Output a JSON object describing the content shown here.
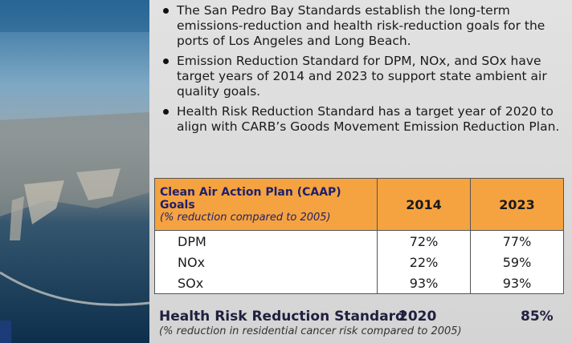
{
  "bullets": [
    "The San Pedro Bay Standards establish the long-term emissions-reduction and health risk-reduction goals for the ports of Los Angeles and Long Beach.",
    "Emission Reduction Standard for DPM, NOx, and SOx have target years of 2014 and 2023 to support state ambient air quality goals.",
    "Health Risk Reduction Standard has a target year of 2020 to align with CARB’s Goods Movement Emission Reduction Plan."
  ],
  "table": {
    "header": {
      "title": "Clean Air Action Plan (CAAP) Goals",
      "subtitle": "(% reduction compared to 2005)",
      "years": [
        "2014",
        "2023"
      ]
    },
    "rows": [
      [
        "DPM",
        "72%",
        "77%"
      ],
      [
        "NOx",
        "22%",
        "59%"
      ],
      [
        "SOx",
        "93%",
        "93%"
      ]
    ]
  },
  "health": {
    "label": "Health Risk Reduction Standard",
    "year": "2020",
    "value": "85%",
    "note": "(% reduction in residential cancer risk compared to 2005)"
  }
}
